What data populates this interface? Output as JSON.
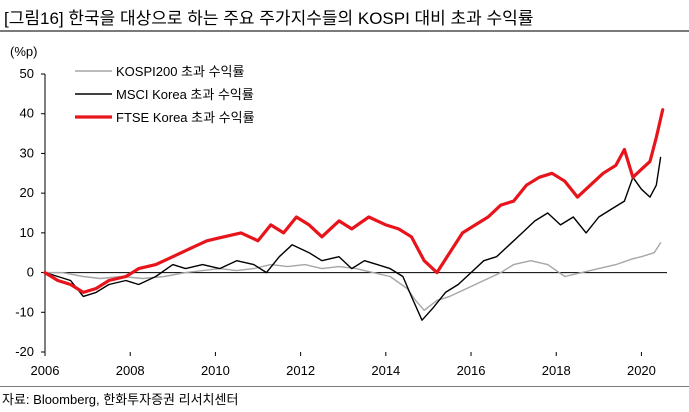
{
  "header": {
    "title": "[그림16]  한국을 대상으로 하는 주요 주가지수들의 KOSPI 대비 초과 수익률"
  },
  "footer": {
    "source": "자료: Bloomberg, 한화투자증권 리서치센터"
  },
  "colors": {
    "kospi": "#a6a6a6",
    "msci": "#000000",
    "ftse": "#e8141b",
    "axis": "#000000"
  },
  "chart_data": {
    "type": "line",
    "title": "",
    "xlabel": "",
    "ylabel": "(%p)",
    "xlim": [
      2006,
      2020.6
    ],
    "ylim": [
      -20,
      50
    ],
    "x_ticks": [
      "2006",
      "2008",
      "2010",
      "2012",
      "2014",
      "2016",
      "2018",
      "2020"
    ],
    "y_ticks": [
      "50",
      "40",
      "30",
      "20",
      "10",
      "0",
      "-10",
      "-20"
    ],
    "legend_position": "top-left",
    "grid": false,
    "series": [
      {
        "name": "KOSPI200  초과 수익률",
        "color": "#a6a6a6",
        "x": [
          2006.0,
          2006.4,
          2006.9,
          2007.3,
          2007.8,
          2008.3,
          2008.8,
          2009.3,
          2009.7,
          2010.1,
          2010.5,
          2010.9,
          2011.3,
          2011.7,
          2012.1,
          2012.5,
          2012.9,
          2013.3,
          2013.7,
          2014.1,
          2014.5,
          2014.7,
          2014.9,
          2015.2,
          2015.5,
          2015.9,
          2016.3,
          2016.7,
          2017.0,
          2017.4,
          2017.8,
          2018.2,
          2018.6,
          2019.0,
          2019.4,
          2019.8,
          2020.0,
          2020.3,
          2020.45
        ],
        "values": [
          0,
          0,
          -1,
          -1.5,
          -1,
          -1.5,
          -1,
          0,
          0.5,
          1,
          0.5,
          1,
          2,
          1.5,
          2,
          1,
          1.5,
          1,
          0,
          -1,
          -4,
          -7,
          -9.5,
          -7,
          -6,
          -4,
          -2,
          0,
          2,
          3,
          2,
          -1,
          0,
          1,
          2,
          3.5,
          4,
          5,
          7.5
        ]
      },
      {
        "name": "MSCI Korea  초과 수익률",
        "color": "#000000",
        "x": [
          2006.0,
          2006.3,
          2006.6,
          2006.9,
          2007.2,
          2007.5,
          2007.9,
          2008.2,
          2008.6,
          2009.0,
          2009.3,
          2009.7,
          2010.1,
          2010.5,
          2010.9,
          2011.2,
          2011.5,
          2011.8,
          2012.2,
          2012.5,
          2012.9,
          2013.2,
          2013.5,
          2013.8,
          2014.1,
          2014.4,
          2014.6,
          2014.85,
          2015.1,
          2015.4,
          2015.7,
          2016.0,
          2016.3,
          2016.6,
          2016.9,
          2017.2,
          2017.5,
          2017.8,
          2018.1,
          2018.4,
          2018.7,
          2019.0,
          2019.3,
          2019.6,
          2019.8,
          2020.0,
          2020.2,
          2020.35,
          2020.45
        ],
        "values": [
          0,
          -1,
          -2,
          -6,
          -5,
          -3,
          -2,
          -3,
          -1,
          2,
          1,
          2,
          1,
          3,
          2,
          0,
          4,
          7,
          5,
          3,
          4,
          1,
          3,
          2,
          1,
          -1,
          -6,
          -12,
          -9,
          -5,
          -3,
          0,
          3,
          4,
          7,
          10,
          13,
          15,
          12,
          14,
          10,
          14,
          16,
          18,
          24,
          21,
          19,
          22,
          29
        ]
      },
      {
        "name": "FTSE Korea  초과 수익률",
        "color": "#e8141b",
        "x": [
          2006.0,
          2006.3,
          2006.6,
          2006.9,
          2007.2,
          2007.5,
          2007.9,
          2008.2,
          2008.6,
          2009.0,
          2009.4,
          2009.8,
          2010.2,
          2010.6,
          2011.0,
          2011.3,
          2011.6,
          2011.9,
          2012.2,
          2012.5,
          2012.9,
          2013.2,
          2013.6,
          2014.0,
          2014.3,
          2014.6,
          2014.9,
          2015.2,
          2015.5,
          2015.8,
          2016.1,
          2016.4,
          2016.7,
          2017.0,
          2017.3,
          2017.6,
          2017.9,
          2018.2,
          2018.5,
          2018.8,
          2019.1,
          2019.4,
          2019.6,
          2019.8,
          2020.0,
          2020.2,
          2020.35,
          2020.5
        ],
        "values": [
          0,
          -2,
          -3,
          -5,
          -4,
          -2,
          -1,
          1,
          2,
          4,
          6,
          8,
          9,
          10,
          8,
          12,
          10,
          14,
          12,
          9,
          13,
          11,
          14,
          12,
          11,
          9,
          3,
          0,
          5,
          10,
          12,
          14,
          17,
          18,
          22,
          24,
          25,
          23,
          19,
          22,
          25,
          27,
          31,
          24,
          26,
          28,
          34,
          41
        ]
      }
    ]
  }
}
